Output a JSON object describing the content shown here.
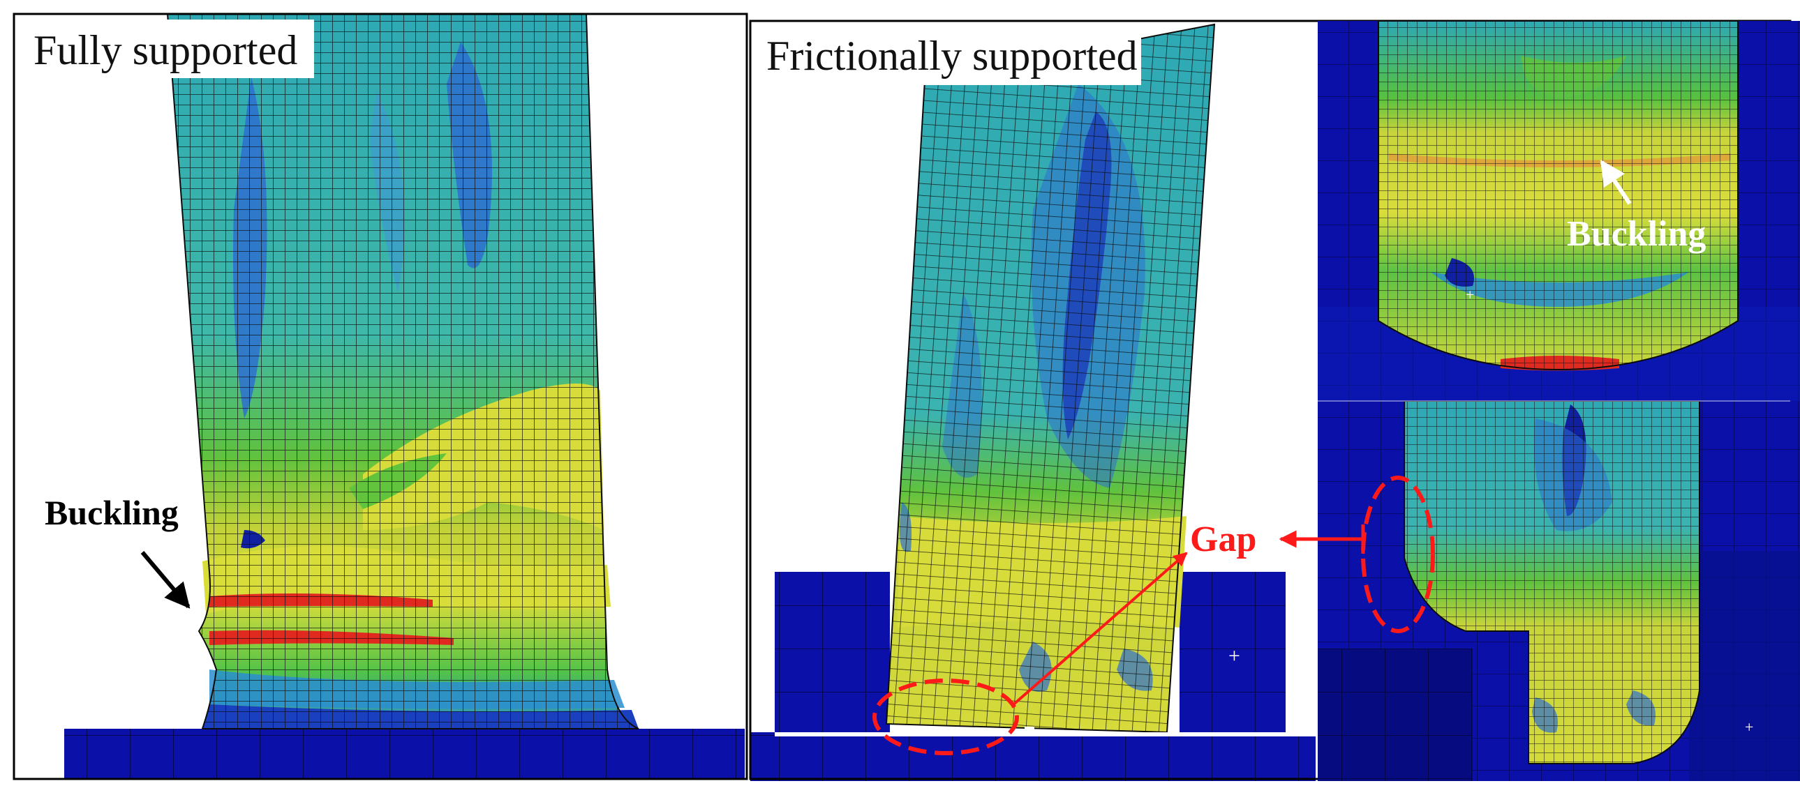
{
  "panels": {
    "left": {
      "title": "Fully supported",
      "annotation": "Buckling"
    },
    "right": {
      "title": "Frictionally supported",
      "annotation_gap": "Gap",
      "annotation_buckling": "Buckling"
    }
  },
  "colors": {
    "base_blue": "#0a10a8",
    "mesh_dark": "#0b0b0b",
    "annotation_red": "#ff1a1a",
    "annotation_black": "#000000",
    "annotation_white": "#ffffff",
    "contour_yellow": "#d9dd3a",
    "contour_green": "#54c23c",
    "contour_cyan": "#20b0b3",
    "contour_blue": "#2e6fd0",
    "contour_darkblue": "#1020a0",
    "contour_red": "#e02a20"
  }
}
